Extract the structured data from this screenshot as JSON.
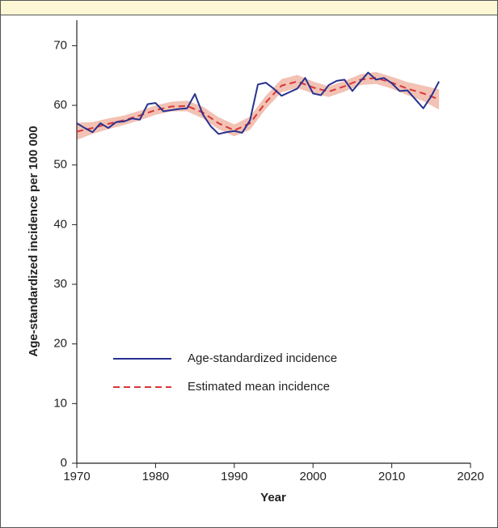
{
  "chart_data": {
    "type": "line",
    "xlabel": "Year",
    "ylabel": "Age-standardized incidence per 100 000",
    "xlim": [
      1970,
      2020
    ],
    "xticks": [
      1970,
      1980,
      1990,
      2000,
      2010,
      2020
    ],
    "ylim": [
      0,
      75
    ],
    "yticks": [
      0,
      10,
      20,
      30,
      40,
      50,
      60,
      70
    ],
    "legend": "lower-left",
    "series": [
      {
        "name": "Age-standardized incidence",
        "color": "#27318f",
        "style": "solid",
        "x": [
          1970,
          1971,
          1972,
          1973,
          1974,
          1975,
          1976,
          1977,
          1978,
          1979,
          1980,
          1981,
          1982,
          1983,
          1984,
          1985,
          1986,
          1987,
          1988,
          1989,
          1990,
          1991,
          1992,
          1993,
          1994,
          1995,
          1996,
          1997,
          1998,
          1999,
          2000,
          2001,
          2002,
          2003,
          2004,
          2005,
          2006,
          2007,
          2008,
          2009,
          2010,
          2011,
          2012,
          2013,
          2014,
          2015,
          2016
        ],
        "values": [
          57.0,
          56.2,
          55.5,
          57.0,
          56.2,
          57.2,
          57.3,
          57.8,
          57.6,
          60.2,
          60.4,
          59.0,
          59.2,
          59.4,
          59.5,
          61.9,
          58.5,
          56.5,
          55.2,
          55.5,
          55.7,
          55.4,
          57.5,
          63.5,
          63.8,
          62.8,
          61.6,
          62.2,
          62.8,
          64.6,
          62.0,
          61.7,
          63.4,
          64.1,
          64.3,
          62.4,
          64.0,
          65.5,
          64.3,
          64.6,
          63.7,
          62.4,
          62.5,
          61.0,
          59.5,
          61.5,
          64.0
        ]
      },
      {
        "name": "Estimated mean incidence",
        "color": "#d9373a",
        "style": "dashed",
        "x": [
          1970,
          1972,
          1974,
          1976,
          1978,
          1980,
          1982,
          1984,
          1986,
          1988,
          1990,
          1992,
          1994,
          1996,
          1998,
          2000,
          2002,
          2004,
          2006,
          2008,
          2010,
          2012,
          2014,
          2016
        ],
        "values": [
          55.6,
          56.2,
          56.9,
          57.5,
          58.3,
          59.2,
          59.8,
          59.9,
          58.8,
          57.0,
          55.8,
          57.0,
          60.5,
          63.3,
          64.0,
          63.0,
          62.3,
          63.2,
          64.3,
          64.6,
          63.8,
          62.8,
          62.0,
          61.0
        ]
      }
    ],
    "band": {
      "color": "#f2c2b4",
      "x": [
        1970,
        1972,
        1974,
        1976,
        1978,
        1980,
        1982,
        1984,
        1986,
        1988,
        1990,
        1992,
        1994,
        1996,
        1998,
        2000,
        2002,
        2004,
        2006,
        2008,
        2010,
        2012,
        2014,
        2016
      ],
      "lower": [
        54.2,
        55.2,
        56.0,
        56.7,
        57.5,
        58.4,
        59.0,
        59.0,
        57.8,
        56.0,
        54.8,
        55.9,
        59.4,
        62.2,
        62.9,
        62.0,
        61.4,
        62.3,
        63.4,
        63.6,
        62.8,
        61.7,
        60.7,
        59.3
      ],
      "upper": [
        57.1,
        57.2,
        57.8,
        58.3,
        59.1,
        60.0,
        60.6,
        60.8,
        59.8,
        58.0,
        56.8,
        58.1,
        61.6,
        64.4,
        65.1,
        64.0,
        63.2,
        64.1,
        65.2,
        65.6,
        64.8,
        63.9,
        63.3,
        62.7
      ]
    }
  }
}
